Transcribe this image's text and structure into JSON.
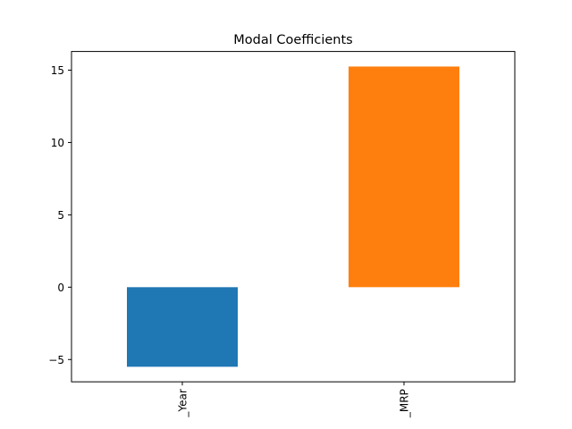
{
  "chart_data": {
    "type": "bar",
    "title": "Modal Coefficients",
    "xlabel": "",
    "ylabel": "",
    "categories": [
      "Item_Outlet_Establishment_Year",
      "Item_MRP"
    ],
    "visible_category_labels": [
      "_Year",
      "_MRP"
    ],
    "values": [
      -5.5,
      15.25
    ],
    "colors": [
      "#1f77b4",
      "#ff7f0e"
    ],
    "ylim": [
      -6.54,
      16.29
    ],
    "yticks": [
      -5,
      0,
      5,
      10,
      15
    ],
    "grid": false,
    "legend": "none"
  }
}
